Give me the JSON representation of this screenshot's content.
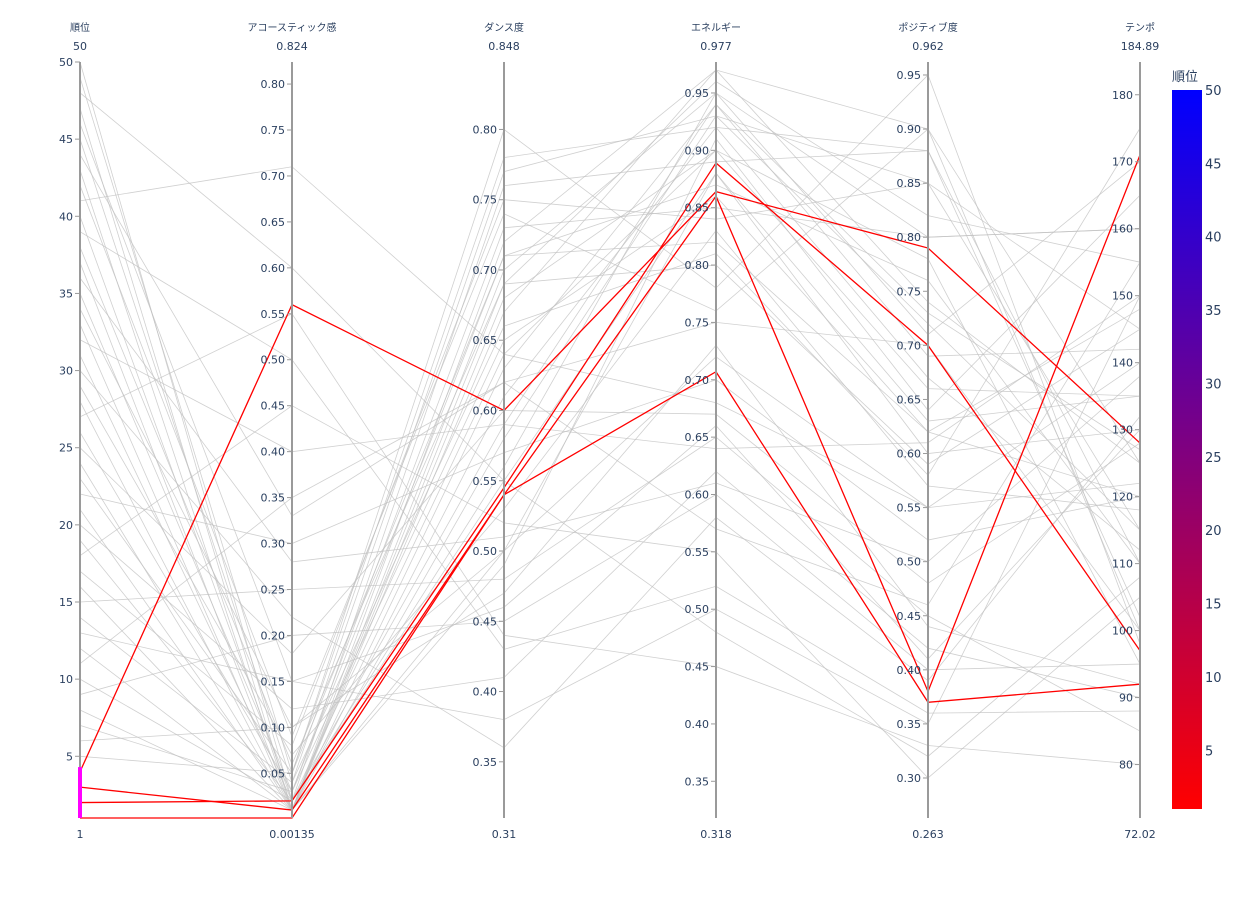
{
  "chart_data": {
    "type": "parallel_coordinates",
    "title": "",
    "highlight_color": "#ff0000",
    "base_line_color": "#c0c0c0",
    "constraint_color": "#ff00ff",
    "dimensions": [
      {
        "key": "rank",
        "label": "順位",
        "range": [
          1,
          50
        ],
        "min_label": "1",
        "max_label": "50",
        "ticks": [
          5,
          10,
          15,
          20,
          25,
          30,
          35,
          40,
          45,
          50
        ],
        "tick_decimals": 0,
        "constraint": [
          1,
          4.3
        ]
      },
      {
        "key": "acousticness",
        "label": "アコースティック感",
        "range": [
          0.00135,
          0.824
        ],
        "min_label": "0.00135",
        "max_label": "0.824",
        "ticks": [
          0.05,
          0.1,
          0.15,
          0.2,
          0.25,
          0.3,
          0.35,
          0.4,
          0.45,
          0.5,
          0.55,
          0.6,
          0.65,
          0.7,
          0.75,
          0.8
        ],
        "tick_decimals": 2
      },
      {
        "key": "danceability",
        "label": "ダンス度",
        "range": [
          0.31,
          0.848
        ],
        "min_label": "0.31",
        "max_label": "0.848",
        "ticks": [
          0.35,
          0.4,
          0.45,
          0.5,
          0.55,
          0.6,
          0.65,
          0.7,
          0.75,
          0.8
        ],
        "tick_decimals": 2
      },
      {
        "key": "energy",
        "label": "エネルギー",
        "range": [
          0.318,
          0.977
        ],
        "min_label": "0.318",
        "max_label": "0.977",
        "ticks": [
          0.35,
          0.4,
          0.45,
          0.5,
          0.55,
          0.6,
          0.65,
          0.7,
          0.75,
          0.8,
          0.85,
          0.9,
          0.95
        ],
        "tick_decimals": 2
      },
      {
        "key": "valence",
        "label": "ポジティブ度",
        "range": [
          0.263,
          0.962
        ],
        "min_label": "0.263",
        "max_label": "0.962",
        "ticks": [
          0.3,
          0.35,
          0.4,
          0.45,
          0.5,
          0.55,
          0.6,
          0.65,
          0.7,
          0.75,
          0.8,
          0.85,
          0.9,
          0.95
        ],
        "tick_decimals": 2
      },
      {
        "key": "tempo",
        "label": "テンポ",
        "range": [
          72.02,
          184.89
        ],
        "min_label": "72.02",
        "max_label": "184.89",
        "ticks": [
          80,
          90,
          100,
          110,
          120,
          130,
          140,
          150,
          160,
          170,
          180
        ],
        "tick_decimals": 0
      }
    ],
    "colorbar": {
      "title": "順位",
      "range": [
        1,
        50
      ],
      "ticks": [
        5,
        10,
        15,
        20,
        25,
        30,
        35,
        40,
        45,
        50
      ],
      "colorscale": [
        "#ff0000",
        "#0000ff"
      ]
    },
    "rows": [
      [
        1,
        0.00135,
        0.54,
        0.86,
        0.38,
        171
      ],
      [
        2,
        0.02,
        0.545,
        0.889,
        0.7,
        97
      ],
      [
        3,
        0.01,
        0.54,
        0.707,
        0.37,
        92
      ],
      [
        4,
        0.56,
        0.6,
        0.864,
        0.79,
        128
      ],
      [
        5,
        0.05,
        0.78,
        0.92,
        0.88,
        110
      ],
      [
        6,
        0.1,
        0.5,
        0.72,
        0.55,
        140
      ],
      [
        7,
        0.03,
        0.65,
        0.86,
        0.62,
        120
      ],
      [
        8,
        0.01,
        0.7,
        0.95,
        0.8,
        160
      ],
      [
        9,
        0.2,
        0.45,
        0.6,
        0.4,
        95
      ],
      [
        10,
        0.02,
        0.55,
        0.88,
        0.6,
        130
      ],
      [
        11,
        0.35,
        0.62,
        0.75,
        0.7,
        100
      ],
      [
        12,
        0.01,
        0.72,
        0.97,
        0.9,
        125
      ],
      [
        13,
        0.15,
        0.38,
        0.5,
        0.35,
        150
      ],
      [
        14,
        0.04,
        0.66,
        0.81,
        0.58,
        175
      ],
      [
        15,
        0.25,
        0.48,
        0.65,
        0.45,
        85
      ],
      [
        16,
        0.01,
        0.58,
        0.93,
        0.72,
        115
      ],
      [
        17,
        0.08,
        0.75,
        0.84,
        0.85,
        145
      ],
      [
        18,
        0.45,
        0.52,
        0.55,
        0.3,
        105
      ],
      [
        19,
        0.02,
        0.64,
        0.9,
        0.66,
        135
      ],
      [
        20,
        0.12,
        0.41,
        0.62,
        0.42,
        90
      ],
      [
        21,
        0.01,
        0.69,
        0.96,
        0.82,
        155
      ],
      [
        22,
        0.3,
        0.57,
        0.7,
        0.52,
        120
      ],
      [
        23,
        0.05,
        0.8,
        0.78,
        0.95,
        98
      ],
      [
        24,
        0.01,
        0.49,
        0.91,
        0.64,
        165
      ],
      [
        25,
        0.18,
        0.6,
        0.67,
        0.48,
        128
      ],
      [
        26,
        0.03,
        0.71,
        0.87,
        0.76,
        110
      ],
      [
        27,
        0.55,
        0.44,
        0.45,
        0.33,
        80
      ],
      [
        28,
        0.01,
        0.63,
        0.94,
        0.69,
        142
      ],
      [
        29,
        0.07,
        0.53,
        0.83,
        0.57,
        118
      ],
      [
        30,
        0.22,
        0.36,
        0.58,
        0.39,
        132
      ],
      [
        31,
        0.02,
        0.76,
        0.89,
        0.88,
        102
      ],
      [
        32,
        0.4,
        0.59,
        0.64,
        0.61,
        150
      ],
      [
        33,
        0.01,
        0.67,
        0.97,
        0.74,
        125
      ],
      [
        34,
        0.1,
        0.47,
        0.73,
        0.44,
        92
      ],
      [
        35,
        0.03,
        0.73,
        0.85,
        0.8,
        160
      ],
      [
        36,
        0.28,
        0.51,
        0.61,
        0.5,
        138
      ],
      [
        37,
        0.01,
        0.61,
        0.92,
        0.67,
        112
      ],
      [
        38,
        0.06,
        0.69,
        0.8,
        0.59,
        145
      ],
      [
        39,
        0.5,
        0.43,
        0.52,
        0.36,
        88
      ],
      [
        40,
        0.02,
        0.56,
        0.95,
        0.71,
        170
      ],
      [
        41,
        0.71,
        0.64,
        0.68,
        0.55,
        122
      ],
      [
        42,
        0.09,
        0.74,
        0.76,
        0.9,
        100
      ],
      [
        43,
        0.01,
        0.5,
        0.88,
        0.63,
        135
      ],
      [
        44,
        0.33,
        0.62,
        0.57,
        0.46,
        155
      ],
      [
        45,
        0.04,
        0.77,
        0.93,
        0.85,
        115
      ],
      [
        46,
        0.15,
        0.46,
        0.66,
        0.41,
        130
      ],
      [
        47,
        0.01,
        0.68,
        0.9,
        0.78,
        95
      ],
      [
        48,
        0.6,
        0.55,
        0.48,
        0.32,
        108
      ],
      [
        49,
        0.05,
        0.71,
        0.82,
        0.62,
        148
      ],
      [
        50,
        0.02,
        0.59,
        0.94,
        0.73,
        127
      ]
    ]
  }
}
